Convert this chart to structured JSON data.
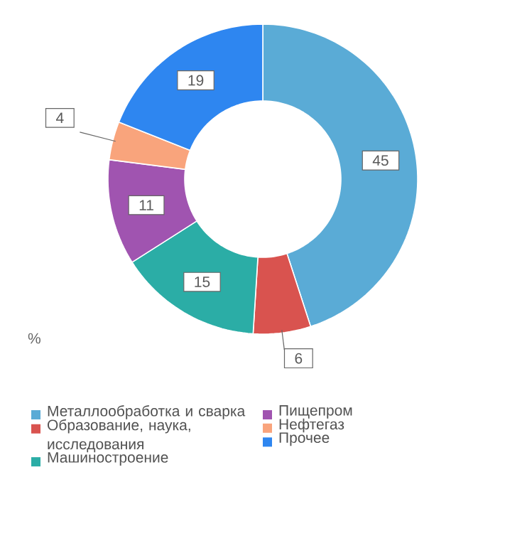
{
  "chart_data": {
    "type": "donut",
    "categories": [
      "Металлообработка и сварка",
      "Образование, наука, исследования",
      "Машиностроение",
      "Пищепром",
      "Нефтегаз",
      "Прочее"
    ],
    "values": [
      45,
      6,
      15,
      11,
      4,
      19
    ],
    "colors": [
      "#5aabd6",
      "#d9534f",
      "#2bada6",
      "#a054b0",
      "#f9a47c",
      "#2e86f0"
    ],
    "data_labels": true,
    "legend": "bottom",
    "annotations": [
      "%"
    ]
  }
}
